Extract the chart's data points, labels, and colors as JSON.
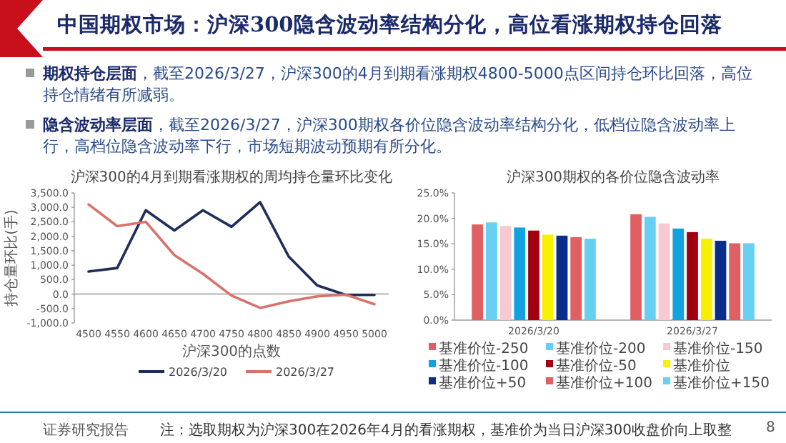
{
  "chart_data": [
    {
      "type": "other",
      "title": "中国期权市场：沪深300隐含波动率结构分化，高位看涨期权持仓回落",
      "annotations": [
        "**期权持仓层面**，截至2026/3/27，沪深300的4月到期看涨期权4800-5000点区间持仓环比回落，高位持仓情绪有所减弱。",
        "**隐含波动率层面**，截至2026/3/27，沪深300期权各价位隐含波动率结构分化，低档位隐含波动率上行，高档位隐含波动率下行，市场短期波动预期有所分化。",
        "证券研究报告",
        "注：选取期权为沪深300在2026年4月的看涨期权，基准价为当日沪深300收盘价向上取整",
        "8"
      ]
    },
    {
      "type": "line",
      "title": "沪深300的4月到期看涨期权的周均持仓量环比变化",
      "xlabel": "沪深300的点数",
      "ylabel": "持仓量环比(手)",
      "categories": [
        "4500",
        "4550",
        "4600",
        "4650",
        "4700",
        "4750",
        "4800",
        "4850",
        "4900",
        "4950",
        "5000"
      ],
      "series": [
        {
          "name": "2026/3/20",
          "color": "#1f2d5a",
          "values": [
            780,
            900,
            2900,
            2200,
            2900,
            2330,
            3180,
            1300,
            300,
            -30,
            -30
          ]
        },
        {
          "name": "2026/3/27",
          "color": "#d9726a",
          "values": [
            3100,
            2350,
            2500,
            1350,
            700,
            -50,
            -480,
            -250,
            -80,
            -20,
            -350
          ]
        }
      ],
      "ylim": [
        -1000,
        3500
      ],
      "yticks": [
        {
          "value": -1000,
          "label": "-1,000.0"
        },
        {
          "value": -500,
          "label": "-500.0"
        },
        {
          "value": 0,
          "label": "0.0"
        },
        {
          "value": 500,
          "label": "500.0"
        },
        {
          "value": 1000,
          "label": "1,000.0"
        },
        {
          "value": 1500,
          "label": "1,500.0"
        },
        {
          "value": 2000,
          "label": "2,000.0"
        },
        {
          "value": 2500,
          "label": "2,500.0"
        },
        {
          "value": 3000,
          "label": "3,000.0"
        },
        {
          "value": 3500,
          "label": "3,500.0"
        }
      ],
      "legend": "bottom"
    },
    {
      "type": "bar",
      "title": "沪深300期权的各价位隐含波动率",
      "categories": [
        "2026/3/20",
        "2026/3/27"
      ],
      "series": [
        {
          "name": "基准价位-250",
          "color": "#e05f63",
          "values": [
            18.8,
            20.8
          ]
        },
        {
          "name": "基准价位-200",
          "color": "#66cff2",
          "values": [
            19.2,
            20.3
          ]
        },
        {
          "name": "基准价位-150",
          "color": "#f7c9d0",
          "values": [
            18.5,
            19.0
          ]
        },
        {
          "name": "基准价位-100",
          "color": "#12a2de",
          "values": [
            18.2,
            18.0
          ]
        },
        {
          "name": "基准价位-50",
          "color": "#a00012",
          "values": [
            17.6,
            17.3
          ]
        },
        {
          "name": "基准价位",
          "color": "#f7f000",
          "values": [
            16.8,
            16.0
          ]
        },
        {
          "name": "基准价位+50",
          "color": "#0a2d8a",
          "values": [
            16.6,
            15.6
          ]
        },
        {
          "name": "基准价位+100",
          "color": "#e05f63",
          "values": [
            16.3,
            15.1
          ]
        },
        {
          "name": "基准价位+150",
          "color": "#66cff2",
          "values": [
            16.0,
            15.1
          ]
        }
      ],
      "ylim": [
        0,
        25
      ],
      "yticks": [
        {
          "value": 0,
          "label": "0.0%"
        },
        {
          "value": 5,
          "label": "5.0%"
        },
        {
          "value": 10,
          "label": "10.0%"
        },
        {
          "value": 15,
          "label": "15.0%"
        },
        {
          "value": 20,
          "label": "20.0%"
        },
        {
          "value": 25,
          "label": "25.0%"
        }
      ],
      "legend": "bottom"
    }
  ]
}
